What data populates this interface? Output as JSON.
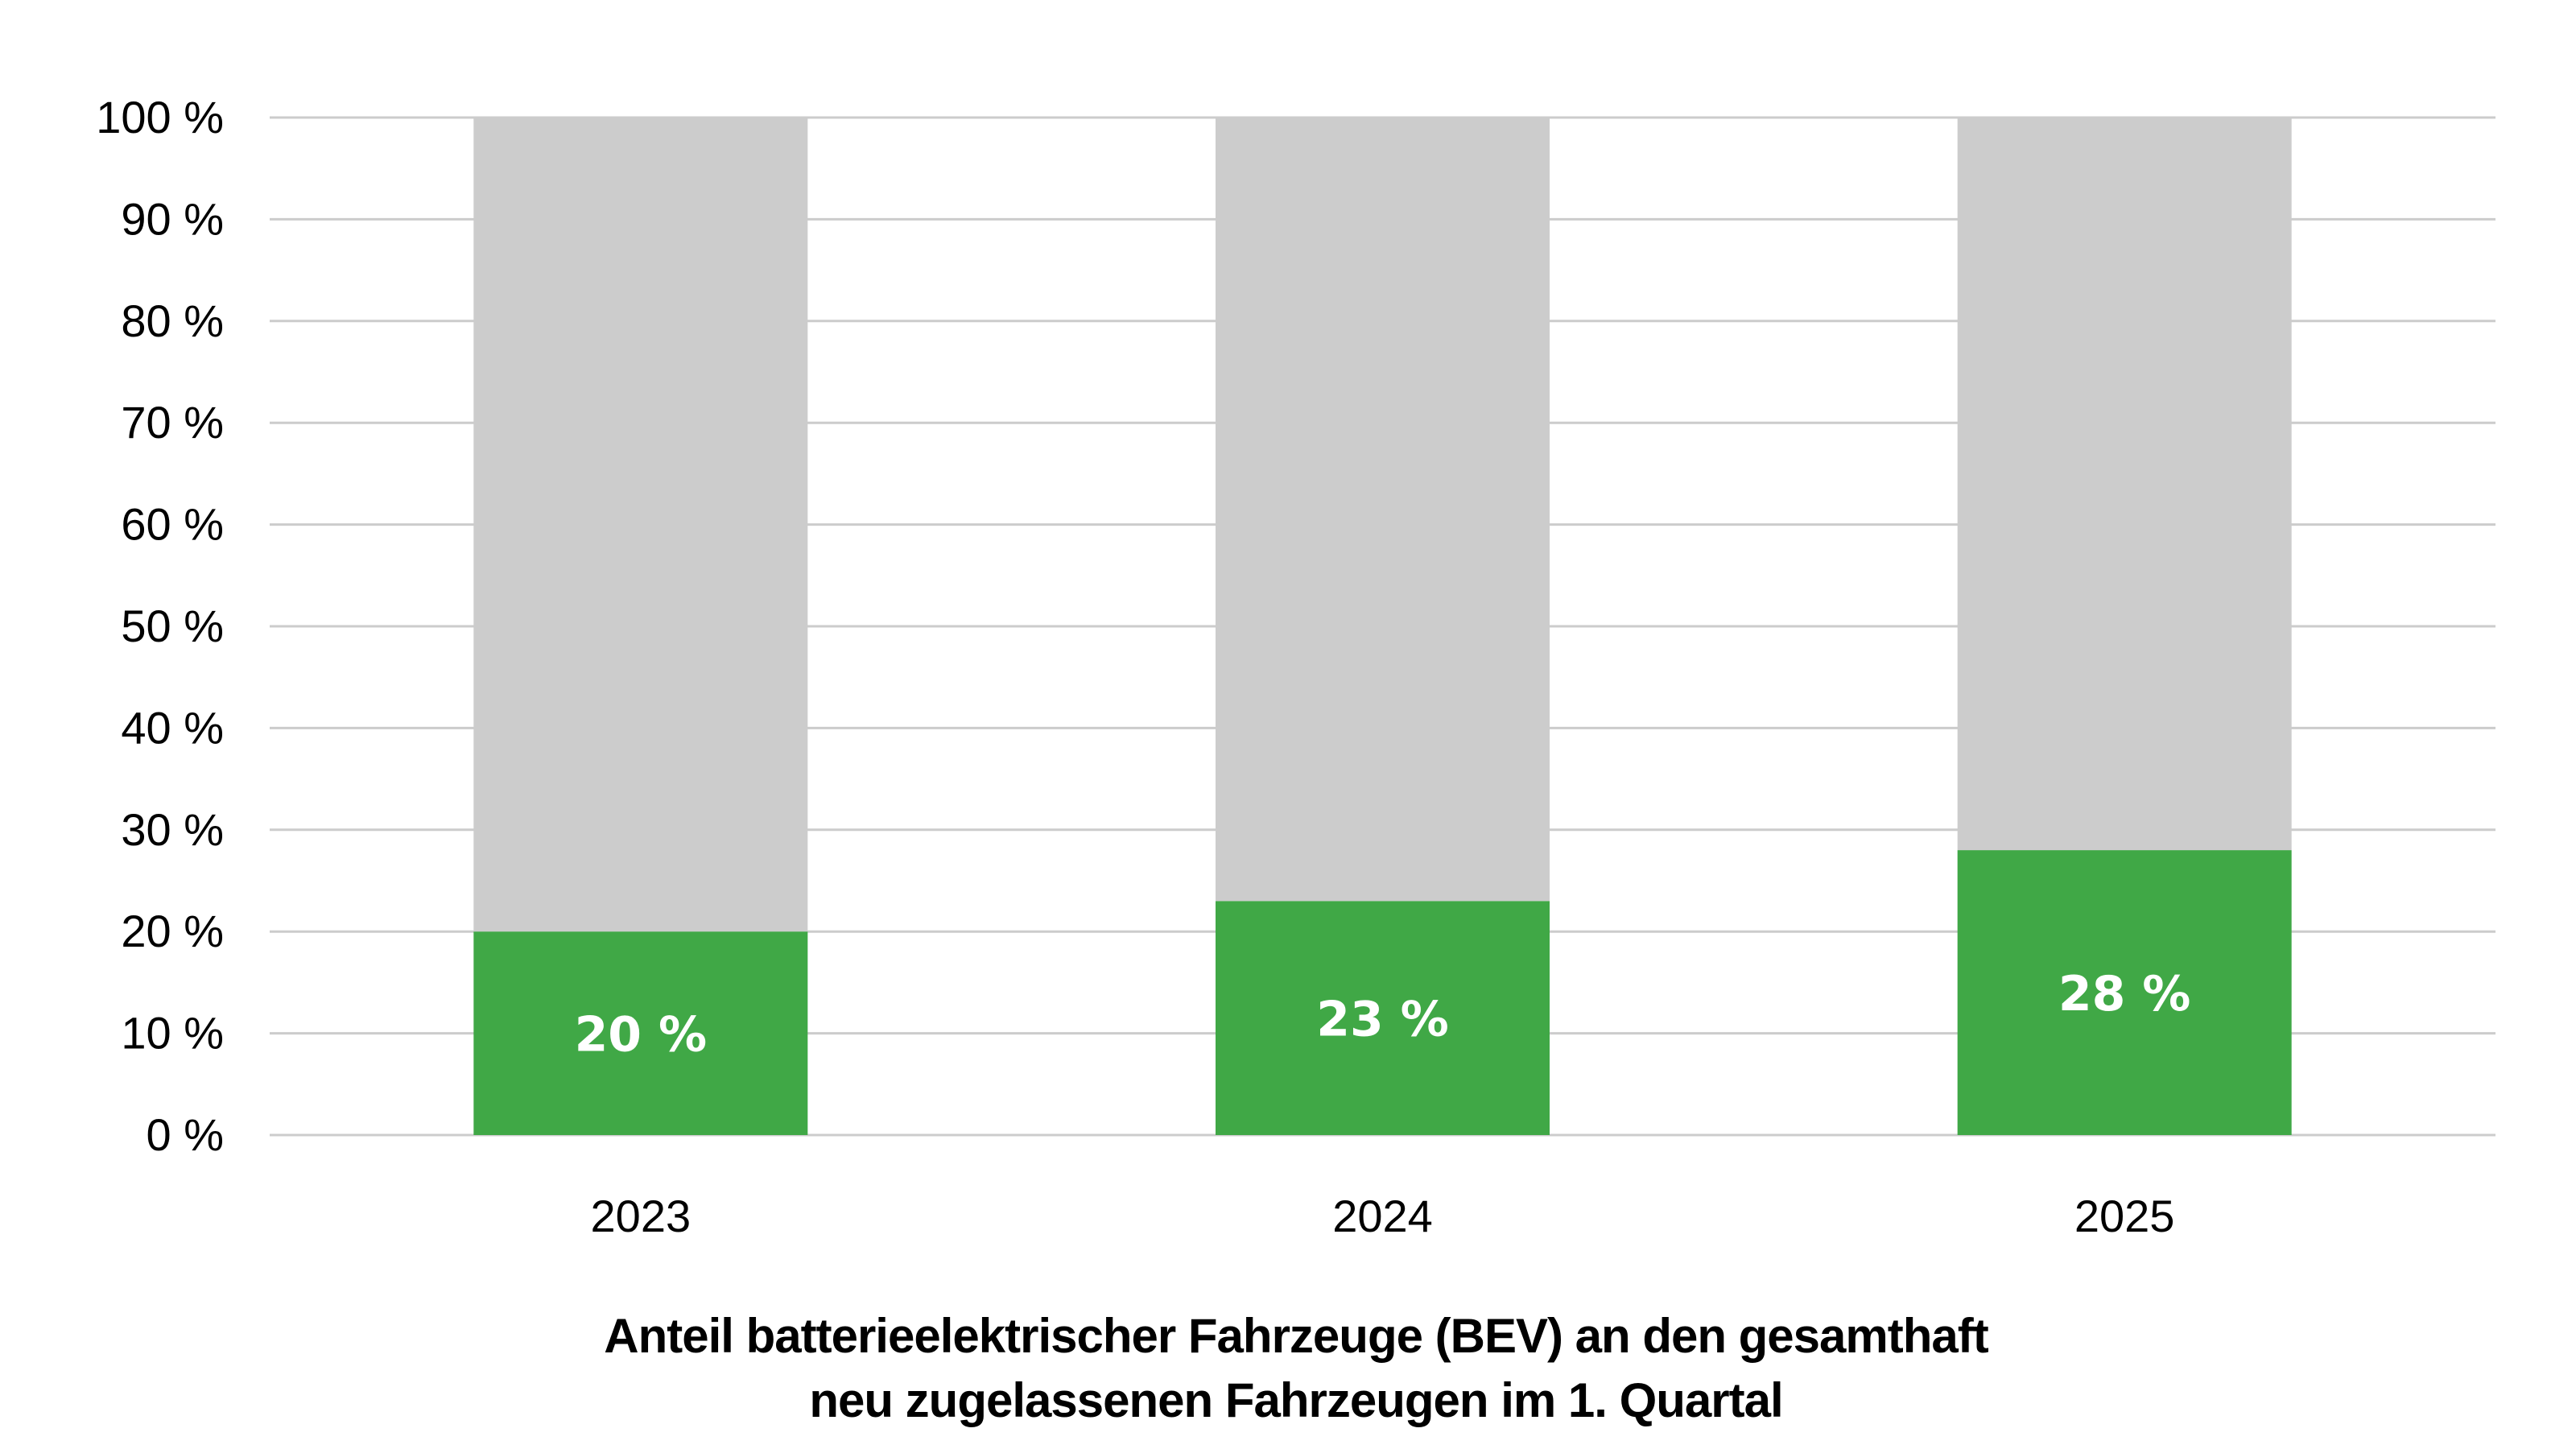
{
  "colors": {
    "bev": "#40a846",
    "remainder": "#cccccc",
    "grid": "#cccccc",
    "text": "#000000",
    "data_label": "#ffffff"
  },
  "chart_data": {
    "type": "bar",
    "stacked": true,
    "categories": [
      "2023",
      "2024",
      "2025"
    ],
    "series": [
      {
        "values": [
          20,
          23,
          28
        ]
      },
      {
        "values": [
          80,
          77,
          72
        ]
      }
    ],
    "data_labels": [
      "20 %",
      "23 %",
      "28 %"
    ],
    "ylim": [
      0,
      100
    ],
    "yticks": [
      0,
      10,
      20,
      30,
      40,
      50,
      60,
      70,
      80,
      90,
      100
    ],
    "ytick_labels": [
      "0 %",
      "10 %",
      "20 %",
      "30 %",
      "40 %",
      "50 %",
      "60 %",
      "70 %",
      "80 %",
      "90 %",
      "100 %"
    ],
    "grid": true,
    "legend": "none",
    "xlabel": "",
    "ylabel": ""
  },
  "caption": {
    "line1": "Anteil batterieelektrischer Fahrzeuge (BEV) an den gesamthaft",
    "line2": "neu zugelassenen Fahrzeugen im 1. Quartal"
  }
}
